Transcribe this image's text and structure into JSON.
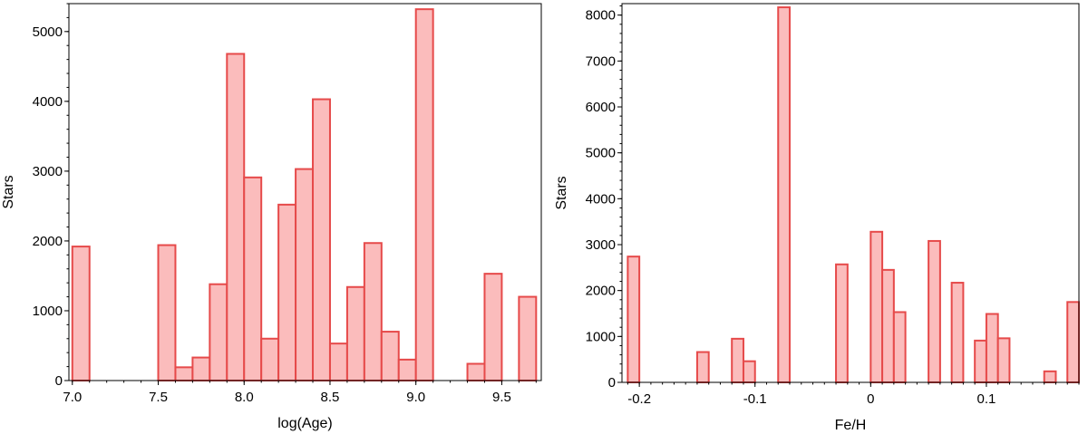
{
  "chart_data": [
    {
      "type": "bar",
      "title": "",
      "xlabel": "log(Age)",
      "ylabel": "Stars",
      "xlim": [
        6.98,
        9.73
      ],
      "ylim": [
        0,
        5400
      ],
      "xticks": [
        "7.0",
        "7.5",
        "8.0",
        "8.5",
        "9.0",
        "9.5"
      ],
      "yticks": [
        "0",
        "1000",
        "2000",
        "3000",
        "4000",
        "5000"
      ],
      "bin_width": 0.1,
      "bins": [
        {
          "x0": 7.0,
          "x1": 7.1,
          "value": 1920
        },
        {
          "x0": 7.5,
          "x1": 7.6,
          "value": 1940
        },
        {
          "x0": 7.6,
          "x1": 7.7,
          "value": 190
        },
        {
          "x0": 7.7,
          "x1": 7.8,
          "value": 330
        },
        {
          "x0": 7.8,
          "x1": 7.9,
          "value": 1380
        },
        {
          "x0": 7.9,
          "x1": 8.0,
          "value": 4680
        },
        {
          "x0": 8.0,
          "x1": 8.1,
          "value": 2910
        },
        {
          "x0": 8.1,
          "x1": 8.2,
          "value": 600
        },
        {
          "x0": 8.2,
          "x1": 8.3,
          "value": 2520
        },
        {
          "x0": 8.3,
          "x1": 8.4,
          "value": 3030
        },
        {
          "x0": 8.4,
          "x1": 8.5,
          "value": 4030
        },
        {
          "x0": 8.5,
          "x1": 8.6,
          "value": 530
        },
        {
          "x0": 8.6,
          "x1": 8.7,
          "value": 1340
        },
        {
          "x0": 8.7,
          "x1": 8.8,
          "value": 1970
        },
        {
          "x0": 8.8,
          "x1": 8.9,
          "value": 700
        },
        {
          "x0": 8.9,
          "x1": 9.0,
          "value": 300
        },
        {
          "x0": 9.0,
          "x1": 9.1,
          "value": 5320
        },
        {
          "x0": 9.3,
          "x1": 9.4,
          "value": 240
        },
        {
          "x0": 9.4,
          "x1": 9.5,
          "value": 1530
        },
        {
          "x0": 9.6,
          "x1": 9.7,
          "value": 1200
        }
      ],
      "colors": {
        "fill": "#fbbcbc",
        "stroke": "#e64a4a"
      },
      "grid": false
    },
    {
      "type": "bar",
      "title": "",
      "xlabel": "Fe/H",
      "ylabel": "Stars",
      "xlim": [
        -0.215,
        0.18
      ],
      "ylim": [
        0,
        8250
      ],
      "xticks": [
        "-0.2",
        "-0.1",
        "0",
        "0.1"
      ],
      "xtick_values": [
        -0.2,
        -0.1,
        0,
        0.1
      ],
      "yticks": [
        "0",
        "1000",
        "2000",
        "3000",
        "4000",
        "5000",
        "6000",
        "7000",
        "8000"
      ],
      "bin_width": 0.01,
      "bins": [
        {
          "x0": -0.21,
          "x1": -0.2,
          "value": 2740
        },
        {
          "x0": -0.15,
          "x1": -0.14,
          "value": 660
        },
        {
          "x0": -0.12,
          "x1": -0.11,
          "value": 950
        },
        {
          "x0": -0.11,
          "x1": -0.1,
          "value": 460
        },
        {
          "x0": -0.08,
          "x1": -0.07,
          "value": 8170
        },
        {
          "x0": -0.03,
          "x1": -0.02,
          "value": 2570
        },
        {
          "x0": 0.0,
          "x1": 0.01,
          "value": 3280
        },
        {
          "x0": 0.01,
          "x1": 0.02,
          "value": 2450
        },
        {
          "x0": 0.02,
          "x1": 0.03,
          "value": 1530
        },
        {
          "x0": 0.05,
          "x1": 0.06,
          "value": 3080
        },
        {
          "x0": 0.07,
          "x1": 0.08,
          "value": 2170
        },
        {
          "x0": 0.09,
          "x1": 0.1,
          "value": 910
        },
        {
          "x0": 0.1,
          "x1": 0.11,
          "value": 1490
        },
        {
          "x0": 0.11,
          "x1": 0.12,
          "value": 960
        },
        {
          "x0": 0.15,
          "x1": 0.16,
          "value": 240
        },
        {
          "x0": 0.17,
          "x1": 0.18,
          "value": 1750
        }
      ],
      "colors": {
        "fill": "#fbbcbc",
        "stroke": "#e64a4a"
      },
      "grid": false
    }
  ]
}
